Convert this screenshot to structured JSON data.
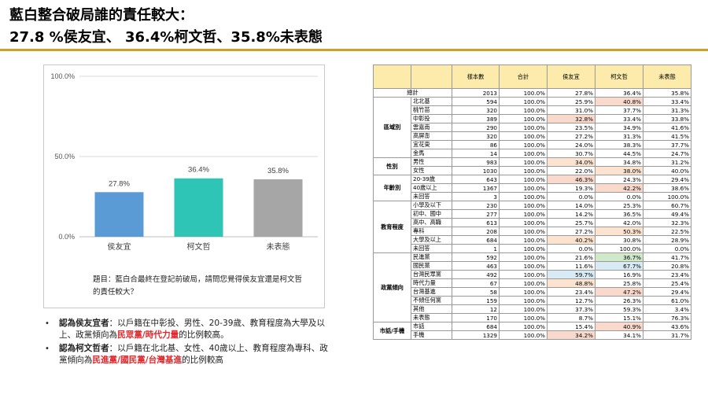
{
  "header": {
    "title_line1": "藍白整合破局誰的責任較大：",
    "title_line2": "27.8 %侯友宜、 36.4%柯文哲、35.8%未表態"
  },
  "chart_data": {
    "type": "bar",
    "categories": [
      "侯友宜",
      "柯文哲",
      "未表態"
    ],
    "values": [
      27.8,
      36.4,
      35.8
    ],
    "value_labels": [
      "27.8%",
      "36.4%",
      "35.8%"
    ],
    "colors": [
      "#5b9bd5",
      "#2ec4b6",
      "#a6a6a6"
    ],
    "ylim": [
      0,
      100
    ],
    "yticks": [
      "0.0%",
      "50.0%",
      "100.0%"
    ],
    "ytick_values": [
      0,
      50,
      100
    ],
    "grid": true,
    "title": "",
    "xlabel": "",
    "ylabel": ""
  },
  "chart_question": "題目：藍白合最終在登記前破局，請問您覺得侯友宜還是柯文哲的責任較大？",
  "bullets": [
    {
      "lead": "認為侯友宜者",
      "text_a": "：以戶籍在中彰投、男性、20-39歲、教育程度為大學及以上、政黨傾向為",
      "highlight": "民眾黨/時代力量",
      "text_b": "的比例較高。"
    },
    {
      "lead": "認為柯文哲者",
      "text_a": "：以戶籍在北北基、女性、40歲以上、教育程度為專科、政黨傾向為",
      "highlight": "民進黨/國民黨/台灣基進",
      "text_b": "的比例較高"
    }
  ],
  "table": {
    "headers": [
      "",
      "",
      "樣本數",
      "合計",
      "侯友宜",
      "柯文哲",
      "未表態"
    ],
    "total": {
      "label": "總計",
      "values": [
        "2013",
        "100.0%",
        "27.8%",
        "36.4%",
        "35.8%"
      ]
    },
    "groups": [
      {
        "name": "區域別",
        "rows": [
          {
            "label": "北北基",
            "values": [
              "594",
              "100.0%",
              "25.9%",
              "40.8%",
              "33.4%"
            ],
            "hl": [
              null,
              null,
              null,
              "red",
              null
            ]
          },
          {
            "label": "桃竹苗",
            "values": [
              "320",
              "100.0%",
              "31.0%",
              "37.7%",
              "31.3%"
            ],
            "hl": [
              null,
              null,
              null,
              null,
              null
            ]
          },
          {
            "label": "中彰投",
            "values": [
              "389",
              "100.0%",
              "32.8%",
              "33.4%",
              "33.8%"
            ],
            "hl": [
              null,
              null,
              "red",
              null,
              null
            ]
          },
          {
            "label": "雲嘉南",
            "values": [
              "290",
              "100.0%",
              "23.5%",
              "34.9%",
              "41.6%"
            ],
            "hl": [
              null,
              null,
              null,
              null,
              null
            ]
          },
          {
            "label": "高屏澎",
            "values": [
              "320",
              "100.0%",
              "27.2%",
              "31.3%",
              "41.5%"
            ],
            "hl": [
              null,
              null,
              null,
              null,
              null
            ]
          },
          {
            "label": "宜花東",
            "values": [
              "86",
              "100.0%",
              "24.0%",
              "38.3%",
              "37.7%"
            ],
            "hl": [
              null,
              null,
              null,
              null,
              null
            ]
          },
          {
            "label": "金馬",
            "values": [
              "14",
              "100.0%",
              "30.7%",
              "44.5%",
              "24.7%"
            ],
            "hl": [
              null,
              null,
              null,
              null,
              null
            ]
          }
        ]
      },
      {
        "name": "性別",
        "rows": [
          {
            "label": "男性",
            "values": [
              "983",
              "100.0%",
              "34.0%",
              "34.8%",
              "31.2%"
            ],
            "hl": [
              null,
              null,
              "orange",
              null,
              null
            ]
          },
          {
            "label": "女性",
            "values": [
              "1030",
              "100.0%",
              "22.0%",
              "38.0%",
              "40.0%"
            ],
            "hl": [
              null,
              null,
              null,
              "orange",
              null
            ]
          }
        ]
      },
      {
        "name": "年齡別",
        "rows": [
          {
            "label": "20-39歲",
            "values": [
              "643",
              "100.0%",
              "46.3%",
              "24.3%",
              "29.4%"
            ],
            "hl": [
              null,
              null,
              "red",
              null,
              null
            ]
          },
          {
            "label": "40歲以上",
            "values": [
              "1367",
              "100.0%",
              "19.3%",
              "42.2%",
              "38.6%"
            ],
            "hl": [
              null,
              null,
              null,
              "red",
              null
            ]
          },
          {
            "label": "未回答",
            "values": [
              "3",
              "100.0%",
              "0.0%",
              "0.0%",
              "100.0%"
            ],
            "hl": [
              null,
              null,
              null,
              null,
              null
            ]
          }
        ]
      },
      {
        "name": "教育程度",
        "rows": [
          {
            "label": "小學及以下",
            "values": [
              "230",
              "100.0%",
              "14.0%",
              "25.3%",
              "60.7%"
            ],
            "hl": [
              null,
              null,
              null,
              null,
              null
            ]
          },
          {
            "label": "初中、國中",
            "values": [
              "277",
              "100.0%",
              "14.2%",
              "36.5%",
              "49.4%"
            ],
            "hl": [
              null,
              null,
              null,
              null,
              null
            ]
          },
          {
            "label": "高中、高職",
            "values": [
              "613",
              "100.0%",
              "25.7%",
              "42.0%",
              "32.3%"
            ],
            "hl": [
              null,
              null,
              null,
              null,
              null
            ]
          },
          {
            "label": "專科",
            "values": [
              "208",
              "100.0%",
              "27.2%",
              "50.3%",
              "22.5%"
            ],
            "hl": [
              null,
              null,
              null,
              "orange",
              null
            ]
          },
          {
            "label": "大學及以上",
            "values": [
              "684",
              "100.0%",
              "40.2%",
              "30.8%",
              "28.9%"
            ],
            "hl": [
              null,
              null,
              "orange",
              null,
              null
            ]
          },
          {
            "label": "未回答",
            "values": [
              "1",
              "100.0%",
              "0.0%",
              "100.0%",
              "0.0%"
            ],
            "hl": [
              null,
              null,
              null,
              null,
              null
            ]
          }
        ]
      },
      {
        "name": "政黨傾向",
        "rows": [
          {
            "label": "民進黨",
            "values": [
              "592",
              "100.0%",
              "21.6%",
              "36.7%",
              "41.7%"
            ],
            "hl": [
              null,
              null,
              null,
              "green",
              null
            ]
          },
          {
            "label": "國民黨",
            "values": [
              "463",
              "100.0%",
              "11.6%",
              "67.7%",
              "20.8%"
            ],
            "hl": [
              null,
              null,
              null,
              "blue",
              null
            ]
          },
          {
            "label": "台灣民眾黨",
            "values": [
              "492",
              "100.0%",
              "59.7%",
              "16.9%",
              "23.4%"
            ],
            "hl": [
              null,
              null,
              "blue",
              null,
              null
            ]
          },
          {
            "label": "時代力量",
            "values": [
              "67",
              "100.0%",
              "48.8%",
              "25.8%",
              "25.4%"
            ],
            "hl": [
              null,
              null,
              "orange",
              null,
              null
            ]
          },
          {
            "label": "台灣基進",
            "values": [
              "58",
              "100.0%",
              "23.4%",
              "47.2%",
              "29.4%"
            ],
            "hl": [
              null,
              null,
              null,
              "red",
              null
            ]
          },
          {
            "label": "不傾任何黨",
            "values": [
              "159",
              "100.0%",
              "12.7%",
              "26.3%",
              "61.0%"
            ],
            "hl": [
              null,
              null,
              null,
              null,
              null
            ]
          },
          {
            "label": "其他",
            "values": [
              "12",
              "100.0%",
              "37.3%",
              "59.3%",
              "3.4%"
            ],
            "hl": [
              null,
              null,
              null,
              null,
              null
            ]
          },
          {
            "label": "未表態",
            "values": [
              "170",
              "100.0%",
              "8.7%",
              "15.1%",
              "76.3%"
            ],
            "hl": [
              null,
              null,
              null,
              null,
              null
            ]
          }
        ]
      },
      {
        "name": "市話/手機",
        "rows": [
          {
            "label": "市話",
            "values": [
              "684",
              "100.0%",
              "15.4%",
              "40.9%",
              "43.6%"
            ],
            "hl": [
              null,
              null,
              null,
              "red",
              null
            ]
          },
          {
            "label": "手機",
            "values": [
              "1329",
              "100.0%",
              "34.2%",
              "34.1%",
              "31.7%"
            ],
            "hl": [
              null,
              null,
              "red",
              null,
              null
            ]
          }
        ]
      }
    ]
  }
}
